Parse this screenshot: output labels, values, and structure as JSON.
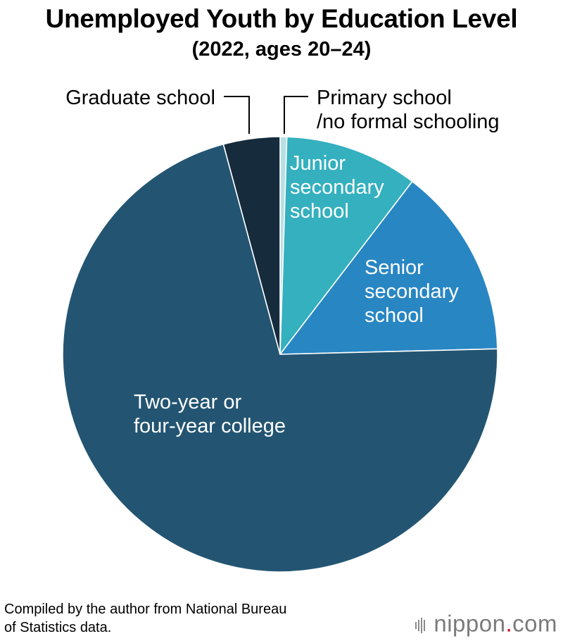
{
  "header": {
    "title": "Unemployed Youth by Education Level",
    "subtitle": "(2022, ages 20–24)"
  },
  "chart_data": {
    "type": "pie",
    "title": "Unemployed Youth by Education Level",
    "subtitle": "(2022, ages 20–24)",
    "start_angle_deg": 0,
    "direction": "clockwise",
    "slices": [
      {
        "label": "Primary school /no formal schooling",
        "value": 0.5,
        "color": "#b9dfe6",
        "label_lines": [
          "Primary school",
          "/no formal schooling"
        ]
      },
      {
        "label": "Junior secondary school",
        "value": 9.9,
        "color": "#34b0bf",
        "label_lines": [
          "Junior",
          "secondary",
          "school"
        ]
      },
      {
        "label": "Senior secondary school",
        "value": 14.2,
        "color": "#2886c3",
        "label_lines": [
          "Senior",
          "secondary",
          "school"
        ]
      },
      {
        "label": "Two-year or four-year college",
        "value": 71.2,
        "color": "#235572",
        "label_lines": [
          "Two-year or",
          "four-year college"
        ]
      },
      {
        "label": "Graduate school",
        "value": 4.2,
        "color": "#162b3c",
        "label_lines": [
          "Graduate school"
        ]
      }
    ]
  },
  "footer": {
    "source_line1": "Compiled by the author from National Bureau",
    "source_line2": "of Statistics data.",
    "brand_prefix": "nippon",
    "brand_dot": ".",
    "brand_suffix": "com"
  }
}
